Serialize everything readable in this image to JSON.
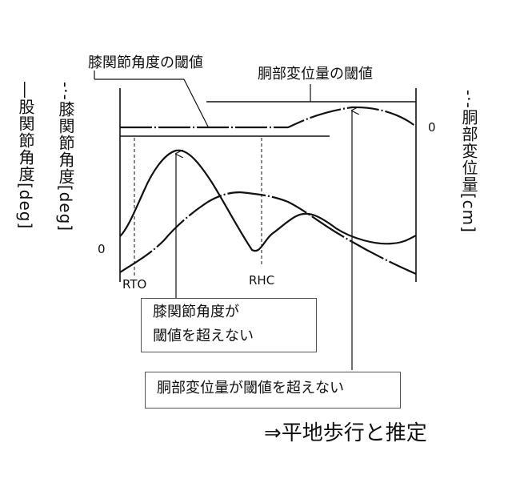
{
  "labels": {
    "knee_threshold": "膝関節角度の閾値",
    "trunk_threshold": "胴部変位量の閾値",
    "left_axis_hip": "―股関節角度[deg]",
    "left_axis_knee": "-·-膝関節角度[deg]",
    "right_axis_trunk": "-·-胴部変位量[cm]",
    "zero_left": "0",
    "zero_right": "0",
    "rto": "RTO",
    "rhc": "RHC"
  },
  "boxes": {
    "knee_box_line1": "膝関節角度が",
    "knee_box_line2": "閾値を超えない",
    "trunk_box": "胴部変位量が閾値を超えない"
  },
  "conclusion": "⇒平地歩行と推定"
}
